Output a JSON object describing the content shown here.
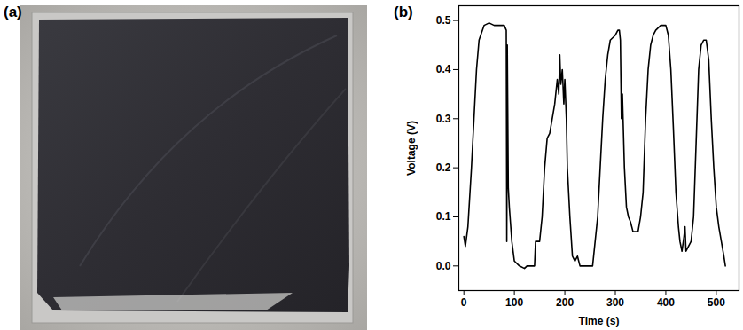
{
  "photo": {
    "panel_label": "(a)"
  },
  "chart_data": {
    "type": "line",
    "panel_label": "(b)",
    "xlabel": "Time (s)",
    "ylabel": "Voltage (V)",
    "color": "#000000",
    "grid": false,
    "xlim": [
      -10,
      545
    ],
    "xticks": [
      0,
      100,
      200,
      300,
      400,
      500
    ],
    "ylim": [
      -0.05,
      0.53
    ],
    "yticks": [
      {
        "value": 0,
        "label": "0.0"
      },
      0.1,
      0.2,
      0.3,
      0.4,
      0.5
    ],
    "x": [
      0,
      3,
      8,
      15,
      20,
      25,
      30,
      40,
      50,
      60,
      70,
      80,
      84,
      85,
      86,
      88,
      90,
      95,
      100,
      110,
      120,
      125,
      130,
      140,
      142,
      150,
      155,
      160,
      165,
      170,
      175,
      180,
      185,
      188,
      190,
      192,
      195,
      198,
      200,
      203,
      205,
      210,
      215,
      220,
      225,
      230,
      250,
      255,
      260,
      265,
      270,
      275,
      280,
      285,
      290,
      300,
      305,
      308,
      310,
      312,
      314,
      318,
      322,
      326,
      330,
      335,
      345,
      350,
      355,
      360,
      365,
      370,
      375,
      380,
      390,
      400,
      405,
      410,
      415,
      420,
      425,
      428,
      432,
      436,
      438,
      440,
      445,
      450,
      455,
      460,
      465,
      470,
      475,
      480,
      485,
      490,
      495,
      500,
      505,
      510,
      515,
      518
    ],
    "values": [
      0.06,
      0.04,
      0.08,
      0.2,
      0.3,
      0.4,
      0.46,
      0.49,
      0.495,
      0.49,
      0.49,
      0.49,
      0.48,
      0.05,
      0.45,
      0.16,
      0.12,
      0.05,
      0.01,
      0.0,
      -0.005,
      0.0,
      0.0,
      0.0,
      0.05,
      0.05,
      0.1,
      0.2,
      0.26,
      0.27,
      0.3,
      0.33,
      0.38,
      0.35,
      0.43,
      0.37,
      0.4,
      0.33,
      0.38,
      0.3,
      0.2,
      0.1,
      0.02,
      0.01,
      0.02,
      0.0,
      0.0,
      0.0,
      0.05,
      0.1,
      0.2,
      0.3,
      0.38,
      0.43,
      0.46,
      0.47,
      0.48,
      0.48,
      0.46,
      0.3,
      0.35,
      0.2,
      0.12,
      0.1,
      0.09,
      0.07,
      0.07,
      0.1,
      0.15,
      0.3,
      0.4,
      0.45,
      0.47,
      0.48,
      0.49,
      0.49,
      0.47,
      0.4,
      0.28,
      0.15,
      0.08,
      0.05,
      0.03,
      0.06,
      0.08,
      0.03,
      0.04,
      0.05,
      0.1,
      0.25,
      0.4,
      0.45,
      0.46,
      0.46,
      0.42,
      0.3,
      0.2,
      0.12,
      0.08,
      0.05,
      0.02,
      0.0
    ]
  }
}
